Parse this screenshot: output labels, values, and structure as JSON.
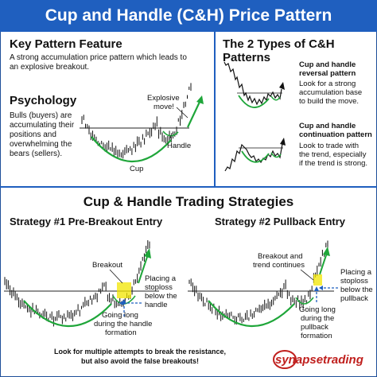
{
  "header": {
    "title": "Cup and Handle (C&H) Price Pattern"
  },
  "key_feature": {
    "heading": "Key Pattern Feature",
    "text_line1": "A strong accumulation price pattern which leads to",
    "text_line2": "an explosive breakout."
  },
  "psychology": {
    "heading": "Psychology",
    "lines": [
      "Bulls (buyers) are",
      "accumulating their",
      "positions and",
      "overwhelming the",
      "bears (sellers)."
    ]
  },
  "main_chart": {
    "label_explosive_1": "Explosive",
    "label_explosive_2": "move!",
    "label_handle": "Handle",
    "label_cup": "Cup"
  },
  "types": {
    "heading": "The 2 Types of C&H Patterns",
    "reversal": {
      "title_1": "Cup and handle",
      "title_2": "reversal pattern",
      "lines": [
        "Look for a strong",
        "accumulation base",
        "to build the move."
      ]
    },
    "continuation": {
      "title_1": "Cup and handle",
      "title_2": "continuation pattern",
      "lines": [
        "Look to trade with",
        "the trend, especially",
        "if the trend is strong."
      ]
    }
  },
  "strategies": {
    "heading": "Cup & Handle Trading Strategies",
    "s1": {
      "title": "Strategy #1 Pre-Breakout Entry",
      "label_breakout": "Breakout",
      "stop_lines": [
        "Placing a",
        "stoploss",
        "below the",
        "handle"
      ],
      "long_lines": [
        "Going long",
        "during the handle",
        "formation"
      ]
    },
    "s2": {
      "title": "Strategy #2 Pullback Entry",
      "label_1": "Breakout and",
      "label_2": "trend continues",
      "stop_lines": [
        "Placing a",
        "stoploss",
        "below the",
        "pullback"
      ],
      "long_lines": [
        "Going long",
        "during the",
        "pullback",
        "formation"
      ]
    }
  },
  "footer": {
    "warning_1": "Look for multiple attempts to break the resistance,",
    "warning_2": "but also avoid the false breakouts!",
    "brand": "synapsetrading"
  },
  "colors": {
    "accent": "#1f5fbf",
    "red": "#c0201e",
    "green": "#1fa63a",
    "yellow": "#f2e600"
  }
}
